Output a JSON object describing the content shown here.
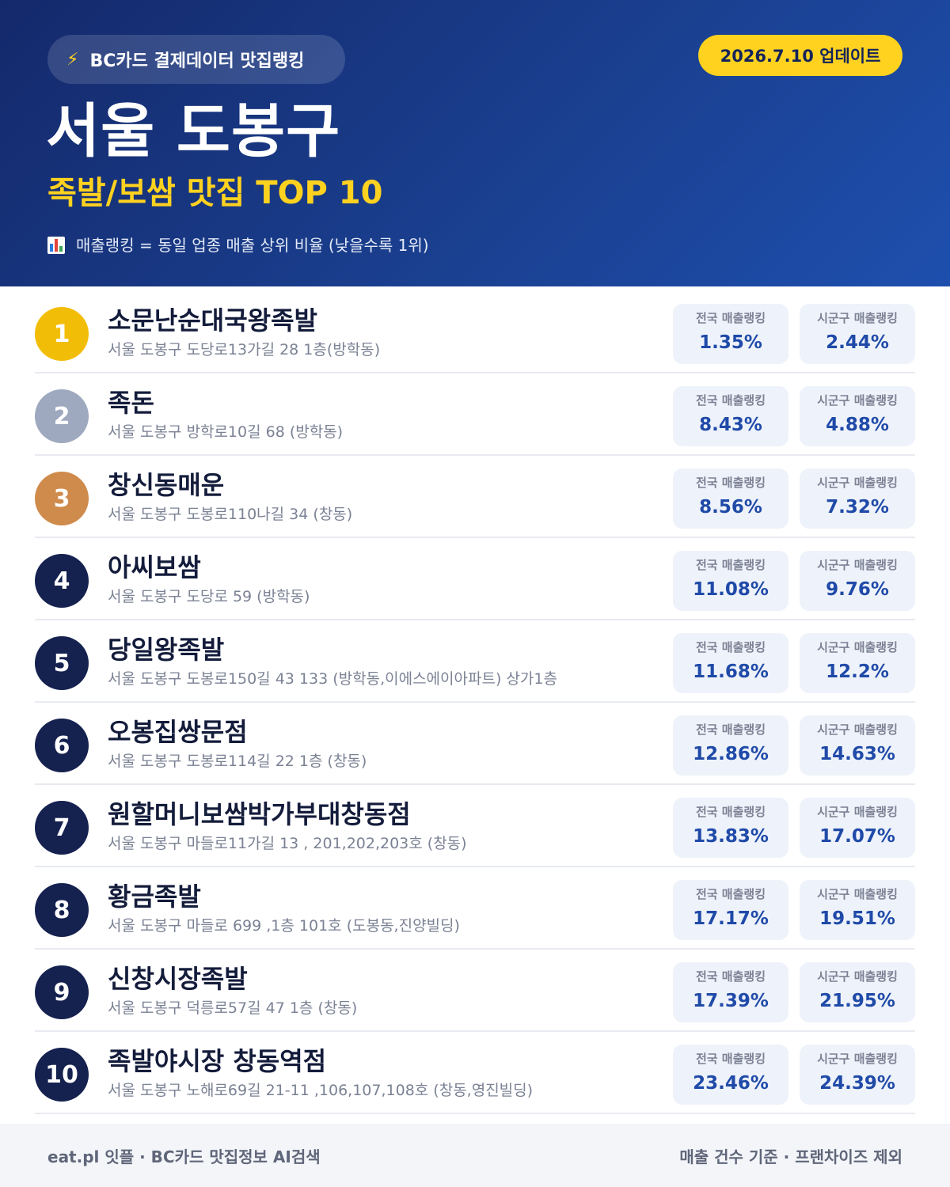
{
  "header": {
    "source_badge": "BC카드 결제데이터 맛집랭킹",
    "update_badge": "2026.7.10 업데이트",
    "title": "서울 도봉구",
    "subtitle": "족발/보쌈 맛집 TOP 10",
    "legend": "매출랭킹 = 동일 업종 매출 상위 비율 (낮을수록 1위)",
    "icons": {
      "source": "lightning-icon",
      "legend": "bar-chart-icon"
    },
    "colors": {
      "accent": "#ffd21f",
      "header_bg": "#1a3f8f"
    }
  },
  "stat_labels": {
    "national": "전국 매출랭킹",
    "local": "시군구 매출랭킹"
  },
  "restaurants": [
    {
      "rank": "1",
      "name": "소문난순대국왕족발",
      "address": "서울 도봉구 도당로13가길 28 1층(방학동)",
      "national": "1.35%",
      "local": "2.44%"
    },
    {
      "rank": "2",
      "name": "족돈",
      "address": "서울 도봉구 방학로10길 68 (방학동)",
      "national": "8.43%",
      "local": "4.88%"
    },
    {
      "rank": "3",
      "name": "창신동매운",
      "address": "서울 도봉구 도봉로110나길 34 (창동)",
      "national": "8.56%",
      "local": "7.32%"
    },
    {
      "rank": "4",
      "name": "아씨보쌈",
      "address": "서울 도봉구 도당로 59 (방학동)",
      "national": "11.08%",
      "local": "9.76%"
    },
    {
      "rank": "5",
      "name": "당일왕족발",
      "address": "서울 도봉구 도봉로150길 43 133 (방학동,이에스에이아파트) 상가1층",
      "national": "11.68%",
      "local": "12.2%"
    },
    {
      "rank": "6",
      "name": "오봉집쌍문점",
      "address": "서울 도봉구 도봉로114길 22 1층 (창동)",
      "national": "12.86%",
      "local": "14.63%"
    },
    {
      "rank": "7",
      "name": "원할머니보쌈박가부대창동점",
      "address": "서울 도봉구 마들로11가길 13 , 201,202,203호 (창동)",
      "national": "13.83%",
      "local": "17.07%"
    },
    {
      "rank": "8",
      "name": "황금족발",
      "address": "서울 도봉구 마들로 699 ,1층 101호 (도봉동,진양빌딩)",
      "national": "17.17%",
      "local": "19.51%"
    },
    {
      "rank": "9",
      "name": "신창시장족발",
      "address": "서울 도봉구 덕릉로57길 47 1층 (창동)",
      "national": "17.39%",
      "local": "21.95%"
    },
    {
      "rank": "10",
      "name": "족발야시장 창동역점",
      "address": "서울 도봉구 노해로69길 21-11 ,106,107,108호 (창동,영진빌딩)",
      "national": "23.46%",
      "local": "24.39%"
    }
  ],
  "footer": {
    "left": "eat.pl 잇플 · BC카드 맛집정보 AI검색",
    "right": "매출 건수 기준 · 프랜차이즈 제외"
  }
}
